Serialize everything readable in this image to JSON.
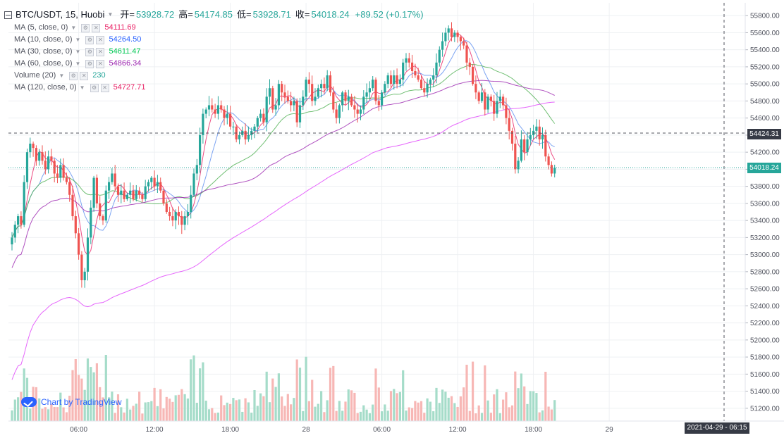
{
  "header": {
    "symbol": "BTC/USDT, 15, Huobi",
    "open_label": "开=",
    "open_value": "53928.72",
    "high_label": "高=",
    "high_value": "54174.85",
    "low_label": "低=",
    "low_value": "53928.71",
    "close_label": "收=",
    "close_value": "54018.24",
    "change": "+89.52 (+0.17%)"
  },
  "indicators": [
    {
      "label": "MA (5, close, 0)",
      "value": "54111.69",
      "color": "#e91e63"
    },
    {
      "label": "MA (10, close, 0)",
      "value": "54264.50",
      "color": "#2962ff"
    },
    {
      "label": "MA (30, close, 0)",
      "value": "54611.47",
      "color": "#00c853"
    },
    {
      "label": "MA (60, close, 0)",
      "value": "54866.34",
      "color": "#9c27b0"
    },
    {
      "label": "Volume (20)",
      "value": "230",
      "color": "#26a69a"
    },
    {
      "label": "MA (120, close, 0)",
      "value": "54727.71",
      "color": "#e91e63"
    }
  ],
  "watermark": "Chart by TradingView",
  "crosshair_price": "54424.31",
  "crosshair_date": "2021-04-29 - 06:15",
  "last_price": "54018.24",
  "colors": {
    "up": "#26a69a",
    "down": "#ef5350",
    "ma5": "#e91e63",
    "ma10": "#5b8def",
    "ma30": "#4caf50",
    "ma60": "#9c27b0",
    "ma120": "#e040fb"
  },
  "chart_data": {
    "type": "candlestick",
    "y_ticks": [
      "55800.00",
      "55600.00",
      "55400.00",
      "55200.00",
      "55000.00",
      "54800.00",
      "54600.00",
      "54400.00",
      "54200.00",
      "54000.00",
      "53800.00",
      "53600.00",
      "53400.00",
      "53200.00",
      "53000.00",
      "52800.00",
      "52600.00",
      "52400.00",
      "52200.00",
      "52000.00",
      "51800.00",
      "51600.00",
      "51400.00",
      "51200.00"
    ],
    "x_ticks": [
      "06:00",
      "12:00",
      "18:00",
      "28",
      "06:00",
      "12:00",
      "18:00",
      "29"
    ],
    "ylim": [
      51050,
      55950
    ],
    "closes": [
      53200,
      53350,
      53450,
      53350,
      53850,
      54200,
      54300,
      54250,
      54100,
      54200,
      54100,
      54000,
      54150,
      54100,
      53950,
      53900,
      54050,
      53900,
      53850,
      53700,
      53450,
      53250,
      53000,
      52700,
      52800,
      53200,
      53550,
      53900,
      53600,
      53450,
      53400,
      53750,
      53850,
      53950,
      53800,
      53700,
      53750,
      53650,
      53700,
      53750,
      53650,
      53750,
      53700,
      53650,
      53800,
      53850,
      53900,
      53800,
      53850,
      53750,
      53600,
      53500,
      53450,
      53400,
      53500,
      53450,
      53350,
      53450,
      53500,
      53700,
      53950,
      54050,
      54400,
      54650,
      54700,
      54750,
      54700,
      54650,
      54750,
      54700,
      54600,
      54650,
      54500,
      54500,
      54350,
      54400,
      54450,
      54350,
      54400,
      54450,
      54500,
      54600,
      54650,
      54550,
      54850,
      54950,
      54700,
      54750,
      55000,
      54900,
      54850,
      54800,
      54750,
      54800,
      54550,
      54750,
      54850,
      55050,
      55000,
      54800,
      54850,
      54950,
      55000,
      54950,
      55100,
      54900,
      54700,
      54600,
      54750,
      54900,
      54800,
      54850,
      54750,
      54700,
      54650,
      54700,
      54850,
      54900,
      54950,
      55050,
      54800,
      54750,
      54900,
      55000,
      55100,
      55000,
      55100,
      55000,
      55050,
      55250,
      55300,
      55250,
      55150,
      55100,
      55050,
      54950,
      54900,
      55000,
      55050,
      55100,
      55250,
      55400,
      55500,
      55600,
      55650,
      55550,
      55600,
      55550,
      55500,
      55450,
      55250,
      55200,
      55000,
      54900,
      54800,
      54900,
      54700,
      54850,
      54800,
      54650,
      54800,
      54850,
      54750,
      54600,
      54450,
      54300,
      54000,
      54100,
      54350,
      54200,
      54350,
      54400,
      54450,
      54500,
      54350,
      54400,
      54150,
      54050,
      53950,
      54018.24
    ],
    "ma_periods": [
      5,
      10,
      30,
      60,
      120
    ],
    "volume_ylim": [
      0,
      1000
    ]
  }
}
